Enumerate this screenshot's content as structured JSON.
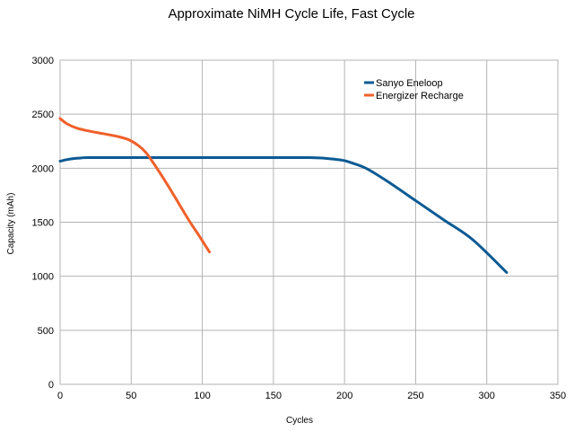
{
  "chart_data": {
    "type": "line",
    "title": "Approximate NiMH Cycle Life, Fast Cycle",
    "xlabel": "Cycles",
    "ylabel": "Capacity (mAh)",
    "xlim": [
      0,
      350
    ],
    "ylim": [
      0,
      3000
    ],
    "x_ticks": [
      0,
      50,
      100,
      150,
      200,
      250,
      300,
      350
    ],
    "y_ticks": [
      0,
      500,
      1000,
      1500,
      2000,
      2500,
      3000
    ],
    "grid": true,
    "legend_position": "top-right",
    "series": [
      {
        "name": "Sanyo Eneloop",
        "color": "#0b5a94",
        "points": [
          [
            0,
            2065
          ],
          [
            5,
            2080
          ],
          [
            10,
            2090
          ],
          [
            15,
            2095
          ],
          [
            20,
            2098
          ],
          [
            50,
            2098
          ],
          [
            100,
            2098
          ],
          [
            150,
            2098
          ],
          [
            175,
            2098
          ],
          [
            185,
            2093
          ],
          [
            195,
            2080
          ],
          [
            200,
            2070
          ],
          [
            205,
            2050
          ],
          [
            215,
            2000
          ],
          [
            230,
            1880
          ],
          [
            250,
            1700
          ],
          [
            270,
            1520
          ],
          [
            290,
            1340
          ],
          [
            314,
            1035
          ]
        ]
      },
      {
        "name": "Energizer Recharge",
        "color": "#f0602a",
        "points": [
          [
            0,
            2460
          ],
          [
            5,
            2410
          ],
          [
            12,
            2370
          ],
          [
            20,
            2345
          ],
          [
            30,
            2320
          ],
          [
            40,
            2295
          ],
          [
            48,
            2265
          ],
          [
            55,
            2210
          ],
          [
            60,
            2150
          ],
          [
            65,
            2060
          ],
          [
            72,
            1920
          ],
          [
            80,
            1750
          ],
          [
            90,
            1530
          ],
          [
            98,
            1370
          ],
          [
            105,
            1225
          ]
        ]
      }
    ]
  }
}
